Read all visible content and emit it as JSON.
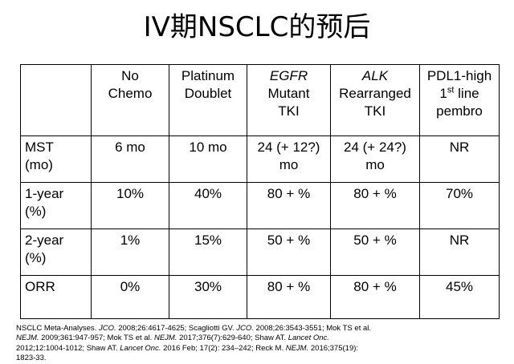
{
  "title": "IV期NSCLC的预后",
  "table": {
    "headers": [
      {
        "lines": [
          "",
          ""
        ]
      },
      {
        "lines": [
          "No",
          "Chemo"
        ]
      },
      {
        "lines": [
          "Platinum",
          "Doublet"
        ]
      },
      {
        "top": "EGFR",
        "lines": [
          "Mutant",
          "TKI"
        ]
      },
      {
        "top": "ALK",
        "lines": [
          "Rearranged",
          "TKI"
        ]
      },
      {
        "line1": "PDL1-high",
        "sup_base": "1",
        "sup": "st",
        "sup_after": " line",
        "line3": "pembro"
      }
    ],
    "rows": [
      {
        "label": [
          "MST",
          "(mo)"
        ],
        "cells": [
          [
            "6 mo"
          ],
          [
            "10 mo"
          ],
          [
            "24 (+ 12?)",
            "mo"
          ],
          [
            "24 (+ 24?)",
            "mo"
          ],
          [
            "NR"
          ]
        ]
      },
      {
        "label": [
          "1-year",
          "(%)"
        ],
        "cells": [
          [
            "10%"
          ],
          [
            "40%"
          ],
          [
            "80 + %"
          ],
          [
            "80 + %"
          ],
          [
            "70%"
          ]
        ]
      },
      {
        "label": [
          "2-year",
          "(%)"
        ],
        "cells": [
          [
            "1%"
          ],
          [
            "15%"
          ],
          [
            "50 + %"
          ],
          [
            "50 + %"
          ],
          [
            "NR"
          ]
        ]
      },
      {
        "label": [
          "ORR"
        ],
        "cells": [
          [
            "0%"
          ],
          [
            "30%"
          ],
          [
            "80 + %"
          ],
          [
            "80 + %"
          ],
          [
            "45%"
          ]
        ]
      }
    ]
  },
  "references": {
    "l1a": "NSCLC Meta-Analyses. ",
    "l1b": "JCO.",
    "l1c": " 2008;26:4617-4625; Scagliotti GV. ",
    "l1d": "JCO.",
    "l1e": " 2008;26:3543-3551; Mok TS et al.",
    "l2a": "NEJM.",
    "l2b": " 2009;361:947-957; Mok TS et al. ",
    "l2c": "NEJM.",
    "l2d": " 2017;376(7):629-640; Shaw AT. ",
    "l2e": "Lancet Onc.",
    "l3a": "2012;12:1004-1012; Shaw AT. ",
    "l3b": "Lancet Onc.",
    "l3c": " 2016 Feb; 17(2): 234–242; Reck M. ",
    "l3d": "NEJM.",
    "l3e": " 2016;375(19):",
    "l4": "1823-33."
  }
}
